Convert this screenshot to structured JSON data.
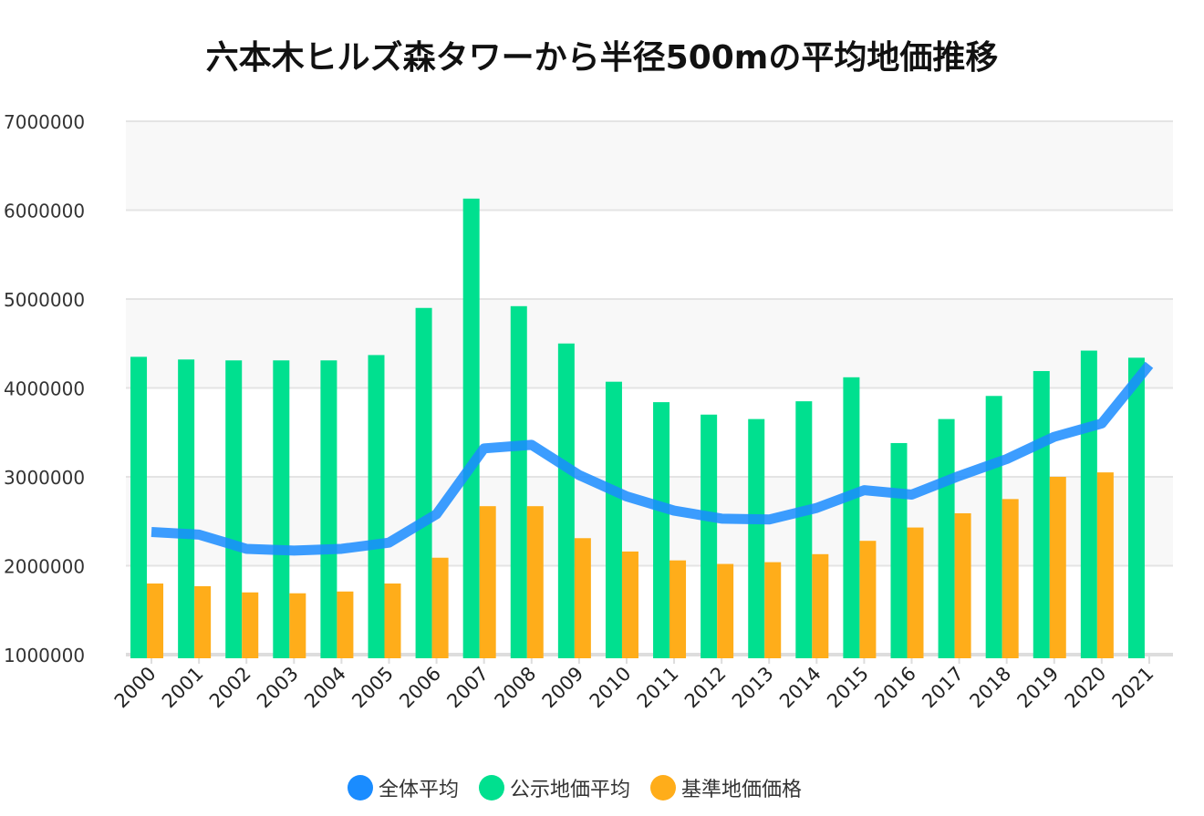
{
  "chart_data": {
    "type": "bar",
    "title": "六本木ヒルズ森タワーから半径500mの平均地価推移",
    "xlabel": "",
    "ylabel": "",
    "ylim": [
      1000000,
      7000000
    ],
    "yticks": [
      1000000,
      2000000,
      3000000,
      4000000,
      5000000,
      6000000,
      7000000
    ],
    "grid": true,
    "legend_position": "bottom",
    "categories": [
      "2000",
      "2001",
      "2002",
      "2003",
      "2004",
      "2005",
      "2006",
      "2007",
      "2008",
      "2009",
      "2010",
      "2011",
      "2012",
      "2013",
      "2014",
      "2015",
      "2016",
      "2017",
      "2018",
      "2019",
      "2020",
      "2021"
    ],
    "series": [
      {
        "name": "全体平均",
        "type": "line",
        "color": "#1a8cff",
        "values": [
          2380000,
          2350000,
          2190000,
          2170000,
          2190000,
          2260000,
          2580000,
          3320000,
          3360000,
          3020000,
          2780000,
          2620000,
          2530000,
          2520000,
          2650000,
          2850000,
          2800000,
          3010000,
          3200000,
          3450000,
          3600000,
          4260000
        ]
      },
      {
        "name": "公示地価平均",
        "type": "bar",
        "color": "#00e08f",
        "values": [
          4350000,
          4320000,
          4310000,
          4310000,
          4310000,
          4370000,
          4900000,
          6130000,
          4920000,
          4500000,
          4070000,
          3840000,
          3700000,
          3650000,
          3850000,
          4120000,
          3380000,
          3650000,
          3910000,
          4190000,
          4420000,
          4340000
        ]
      },
      {
        "name": "基準地価価格",
        "type": "bar",
        "color": "#ffad1a",
        "values": [
          1800000,
          1770000,
          1700000,
          1690000,
          1710000,
          1800000,
          2090000,
          2670000,
          2670000,
          2310000,
          2160000,
          2060000,
          2020000,
          2040000,
          2130000,
          2280000,
          2430000,
          2590000,
          2750000,
          3000000,
          3050000,
          null
        ]
      }
    ]
  }
}
